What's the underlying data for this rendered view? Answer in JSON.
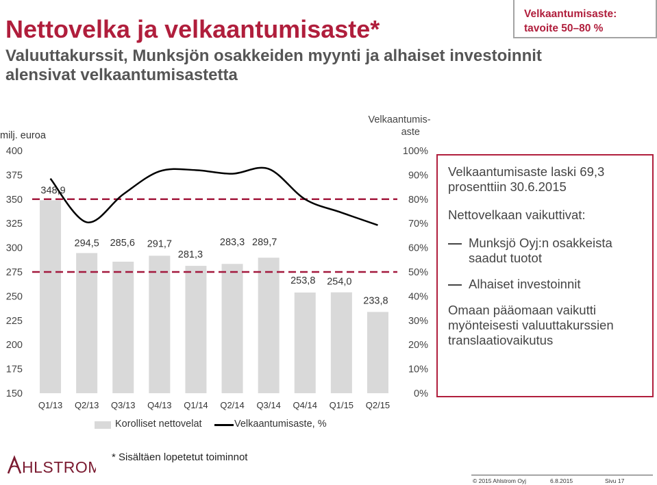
{
  "header": {
    "title": "Nettovelka ja velkaantumisaste*",
    "subtitle": "Valuuttakurssit, Munksjön osakkeiden myynti ja alhaiset investoinnit alensivat velkaantumisastetta",
    "target_line1": "Velkaantumisaste:",
    "target_line2": "tavoite 50–80 %"
  },
  "chart_data": {
    "type": "bar",
    "categories": [
      "Q1/13",
      "Q2/13",
      "Q3/13",
      "Q4/13",
      "Q1/14",
      "Q2/14",
      "Q3/14",
      "Q4/14",
      "Q1/15",
      "Q2/15"
    ],
    "series": [
      {
        "name": "Korolliset nettovelat",
        "type": "bar",
        "axis": "left",
        "values": [
          348.9,
          294.5,
          285.6,
          291.7,
          281.3,
          283.3,
          289.7,
          253.8,
          254.0,
          233.8
        ],
        "labels": [
          "348,9",
          "294,5",
          "285,6",
          "291,7",
          "281,3",
          "283,3",
          "289,7",
          "253,8",
          "254,0",
          "233,8"
        ]
      },
      {
        "name": "Velkaantumisaste, %",
        "type": "line",
        "axis": "right",
        "values": [
          88.5,
          70.5,
          82.0,
          91.5,
          92.0,
          90.5,
          92.5,
          80.0,
          74.5,
          69.3
        ]
      }
    ],
    "ylabel": "milj. euroa",
    "y2label_line1": "Velkaantumis-",
    "y2label_line2": "aste",
    "ylim": [
      150,
      400
    ],
    "yticks": [
      "150",
      "175",
      "200",
      "225",
      "250",
      "275",
      "300",
      "325",
      "350",
      "375",
      "400"
    ],
    "y2lim": [
      0,
      100
    ],
    "y2ticks": [
      "0%",
      "10%",
      "20%",
      "30%",
      "40%",
      "50%",
      "60%",
      "70%",
      "80%",
      "90%",
      "100%"
    ],
    "target_band": [
      50,
      80
    ],
    "legend": [
      "Korolliset nettovelat",
      "Velkaantumisaste, %"
    ],
    "colors": {
      "bar": "#d9d9d9",
      "line": "#000000",
      "target": "#a3193d"
    }
  },
  "info": {
    "p1": "Velkaantumisaste laski 69,3 prosenttiin 30.6.2015",
    "p2": "Nettovelkaan vaikuttivat:",
    "items": [
      "Munksjö Oyj:n osakkeista saadut tuotot",
      "Alhaiset investoinnit"
    ],
    "p3": "Omaan pääomaan vaikutti myönteisesti valuuttakurssien translaatiovaikutus"
  },
  "footnote": "* Sisältäen lopetetut toiminnot",
  "footer": {
    "copyright": "© 2015 Ahlstrom Oyj",
    "date": "6.8.2015",
    "page": "Sivu 17"
  },
  "logo_text": "AHLSTROM",
  "colors": {
    "accent": "#b01e3c",
    "subtitle": "#555555"
  }
}
